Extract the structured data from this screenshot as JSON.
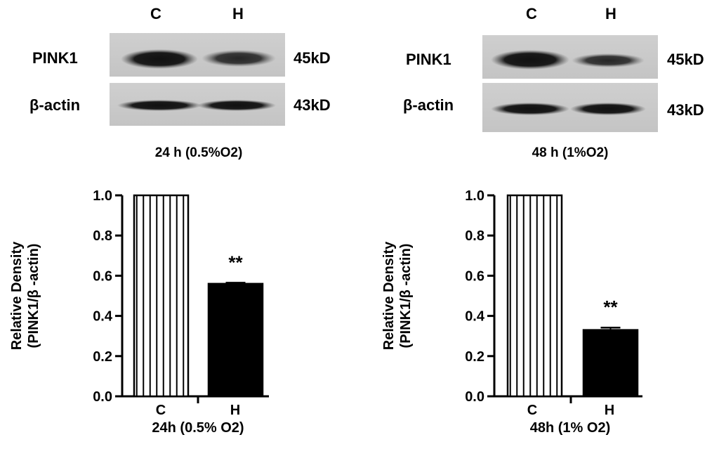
{
  "panels": [
    {
      "lanes": [
        "C",
        "H"
      ],
      "blots": [
        {
          "label": "PINK1",
          "size": "45kD"
        },
        {
          "label": "β-actin",
          "size": "43kD"
        }
      ],
      "condition": "24 h (0.5%O2)"
    },
    {
      "lanes": [
        "C",
        "H"
      ],
      "blots": [
        {
          "label": "PINK1",
          "size": "45kD"
        },
        {
          "label": "β-actin",
          "size": "43kD"
        }
      ],
      "condition": "48 h (1%O2)"
    }
  ],
  "chart_data": [
    {
      "type": "bar",
      "categories": [
        "C",
        "H"
      ],
      "values": [
        1.0,
        0.56
      ],
      "errors": [
        0,
        0.005
      ],
      "significance": [
        "",
        "**"
      ],
      "ylabel_line1": "Relative Density",
      "ylabel_line2": "(PINK1/β -actin)",
      "xlabel": "24h (0.5% O2)",
      "ylim": [
        0,
        1.0
      ],
      "yticks": [
        "0.0",
        "0.2",
        "0.4",
        "0.6",
        "0.8",
        "1.0"
      ],
      "bar_styles": [
        "striped",
        "solid"
      ],
      "colors": {
        "bar": "#000000",
        "fill": "#ffffff"
      }
    },
    {
      "type": "bar",
      "categories": [
        "C",
        "H"
      ],
      "values": [
        1.0,
        0.33
      ],
      "errors": [
        0,
        0.012
      ],
      "significance": [
        "",
        "**"
      ],
      "ylabel_line1": "Relative Density",
      "ylabel_line2": "(PINK1/β -actin)",
      "xlabel": "48h (1% O2)",
      "ylim": [
        0,
        1.0
      ],
      "yticks": [
        "0.0",
        "0.2",
        "0.4",
        "0.6",
        "0.8",
        "1.0"
      ],
      "bar_styles": [
        "striped",
        "solid"
      ],
      "colors": {
        "bar": "#000000",
        "fill": "#ffffff"
      }
    }
  ]
}
